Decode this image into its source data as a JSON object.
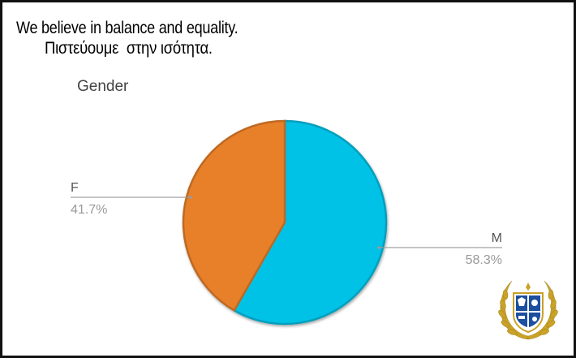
{
  "heading": {
    "line1": "We believe in balance and equality.",
    "line2": "Πιστεύουμε  στην ισότητα."
  },
  "chart_data": {
    "type": "pie",
    "title": "Gender",
    "slices": [
      {
        "label": "M",
        "value": 58.3,
        "display": "58.3%",
        "color": "#00c2e6"
      },
      {
        "label": "F",
        "value": 41.7,
        "display": "41.7%",
        "color": "#e8802a"
      }
    ],
    "start_angle": "12 o'clock",
    "direction": "clockwise",
    "legend": "none (callout labels)"
  },
  "emblem": {
    "name": "laurel-wreath-crest",
    "colors": [
      "#c9a227",
      "#1d4fa0"
    ]
  }
}
